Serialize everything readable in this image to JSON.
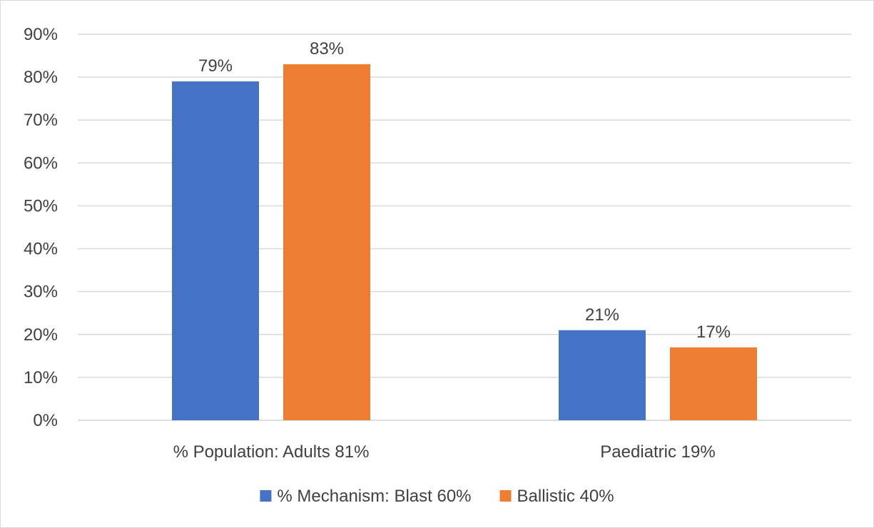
{
  "chart_data": {
    "type": "bar",
    "title": "",
    "xlabel": "",
    "ylabel": "",
    "categories": [
      "% Population: Adults 81%",
      "Paediatric 19%"
    ],
    "series": [
      {
        "name": "% Mechanism: Blast 60%",
        "values": [
          79,
          21
        ],
        "labels": [
          "79%",
          "21%"
        ],
        "color": "#4472C4"
      },
      {
        "name": "Ballistic 40%",
        "values": [
          83,
          17
        ],
        "labels": [
          "83%",
          "17%"
        ],
        "color": "#ED7D31"
      }
    ],
    "ylim": [
      0,
      90
    ],
    "yticks": [
      0,
      10,
      20,
      30,
      40,
      50,
      60,
      70,
      80,
      90
    ],
    "ytick_labels": [
      "0%",
      "10%",
      "20%",
      "30%",
      "40%",
      "50%",
      "60%",
      "70%",
      "80%",
      "90%"
    ],
    "grid": true,
    "legend": "bottom-center",
    "gridline_color": "#d9d9d9"
  }
}
